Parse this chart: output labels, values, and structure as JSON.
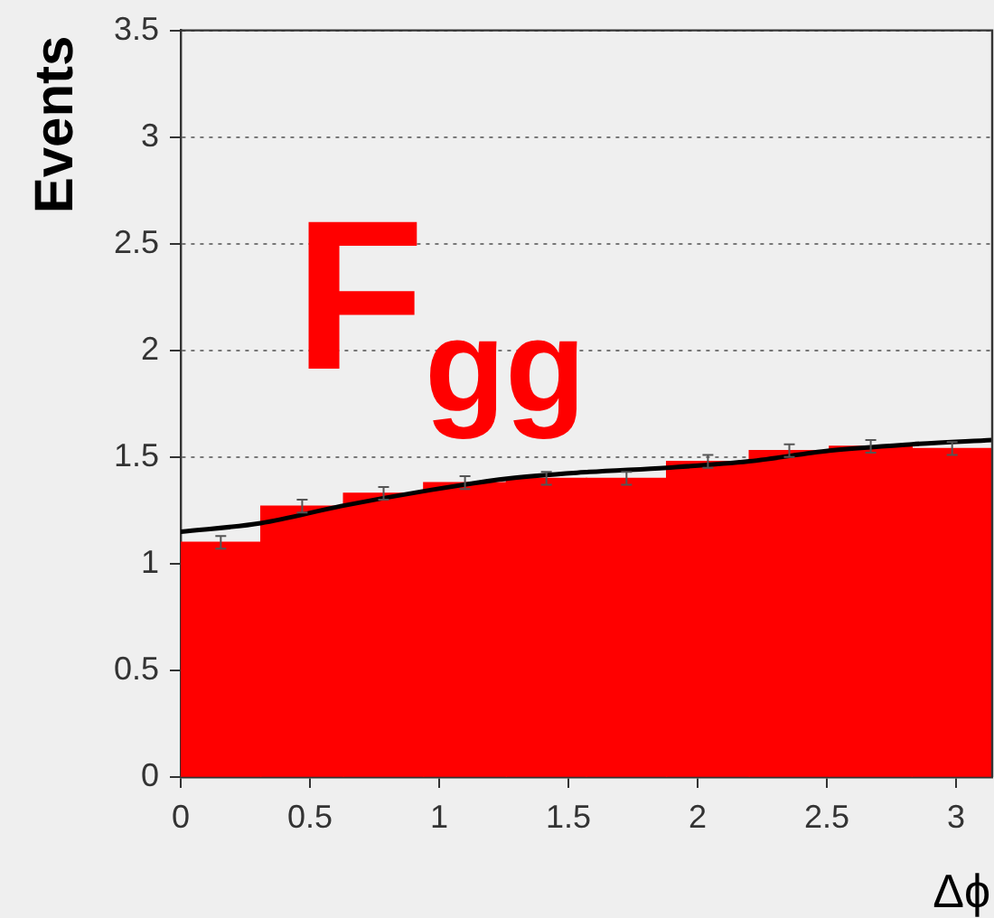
{
  "chart_data": {
    "type": "histogram",
    "xlabel": "Δϕ",
    "ylabel": "Events",
    "annotations": [
      "F$_{gg}$"
    ],
    "bins": [
      0,
      0.31,
      0.63,
      0.94,
      1.26,
      1.57,
      1.88,
      2.2,
      2.51,
      2.83,
      3.14
    ],
    "xlim": [
      0,
      3.14
    ],
    "xticks": [
      0,
      0.5,
      1,
      1.5,
      2,
      2.5,
      3
    ],
    "ylim": [
      0,
      3.5
    ],
    "yticks": [
      0,
      0.5,
      1,
      1.5,
      2,
      2.5,
      3,
      3.5
    ],
    "grid": "y",
    "series": [
      {
        "type": "histogram",
        "color": "#ff0000",
        "values": [
          1.1,
          1.27,
          1.33,
          1.38,
          1.4,
          1.4,
          1.48,
          1.53,
          1.55,
          1.54
        ],
        "errors": [
          0.03,
          0.03,
          0.03,
          0.03,
          0.03,
          0.03,
          0.03,
          0.03,
          0.03,
          0.03
        ]
      },
      {
        "type": "line",
        "color": "#000000",
        "x": [
          0,
          0.31,
          0.62,
          0.94,
          1.27,
          1.58,
          1.88,
          2.2,
          2.51,
          2.83,
          3.14
        ],
        "values": [
          1.15,
          1.19,
          1.27,
          1.34,
          1.4,
          1.43,
          1.45,
          1.48,
          1.53,
          1.56,
          1.58
        ]
      }
    ]
  }
}
